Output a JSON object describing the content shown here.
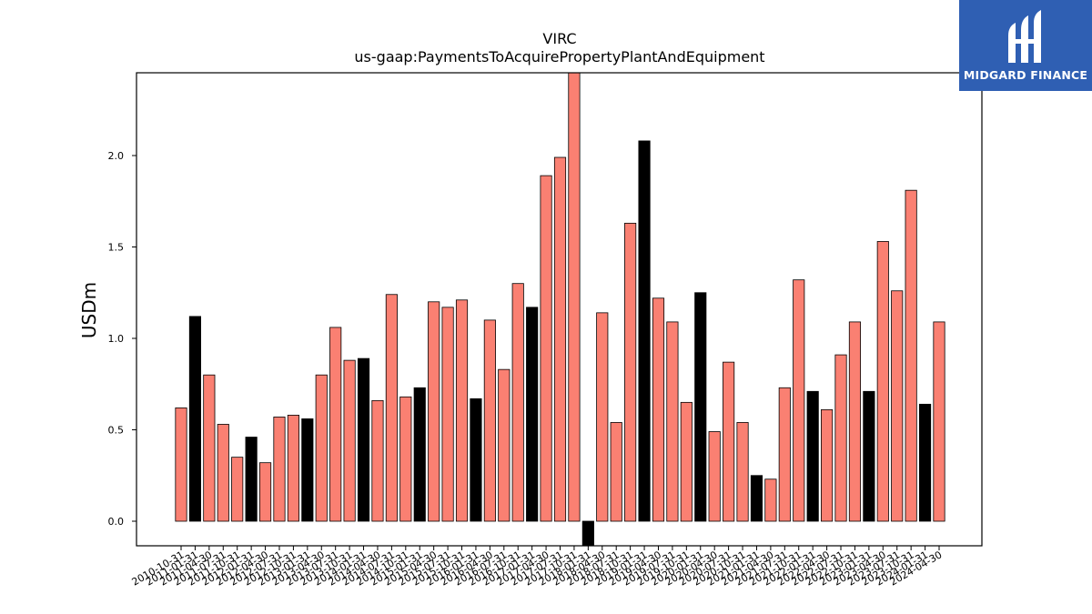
{
  "brand": {
    "name": "MIDGARD FINANCE",
    "logo_color": "#2f5fb3"
  },
  "chart_data": {
    "type": "bar",
    "title": "VIRC",
    "subtitle": "us-gaap:PaymentsToAcquirePropertyPlantAndEquipment",
    "xlabel": "",
    "ylabel": "USDm",
    "ylim": [
      -0.14,
      2.45
    ],
    "yticks": [
      0.0,
      0.5,
      1.0,
      1.5,
      2.0
    ],
    "ytick_labels": [
      "0.0",
      "0.5",
      "1.0",
      "1.5",
      "2.0"
    ],
    "grid": false,
    "colors": {
      "quarterly": "#fa8072",
      "annual": "#000000",
      "edge": "#000000"
    },
    "categories": [
      "2010-10-31",
      "2011-01-31",
      "2011-04-30",
      "2011-07-31",
      "2011-10-31",
      "2012-01-31",
      "2012-04-30",
      "2012-07-31",
      "2012-10-31",
      "2013-01-31",
      "2013-04-30",
      "2013-07-31",
      "2013-10-31",
      "2014-01-31",
      "2014-04-30",
      "2014-07-31",
      "2014-10-31",
      "2015-01-31",
      "2015-04-30",
      "2015-07-31",
      "2015-10-31",
      "2016-01-31",
      "2016-04-30",
      "2016-07-31",
      "2016-10-31",
      "2017-01-31",
      "2017-04-30",
      "2017-07-31",
      "2017-10-31",
      "2018-01-31",
      "2018-04-30",
      "2018-07-31",
      "2018-10-31",
      "2019-01-31",
      "2019-04-30",
      "2019-07-31",
      "2019-10-31",
      "2020-01-31",
      "2020-04-30",
      "2020-07-31",
      "2020-10-31",
      "2021-01-31",
      "2021-04-30",
      "2021-07-31",
      "2021-10-31",
      "2022-01-31",
      "2022-04-30",
      "2022-07-31",
      "2022-10-31",
      "2023-01-31",
      "2023-04-30",
      "2023-07-31",
      "2023-10-31",
      "2024-01-31",
      "2024-04-30"
    ],
    "values": [
      0.62,
      1.12,
      0.8,
      0.53,
      0.35,
      0.46,
      0.32,
      0.57,
      0.58,
      0.56,
      0.8,
      1.06,
      0.88,
      0.89,
      0.66,
      1.24,
      0.68,
      0.73,
      1.2,
      1.17,
      1.21,
      0.67,
      1.1,
      0.83,
      1.3,
      1.17,
      1.89,
      1.99,
      2.46,
      -0.14,
      1.14,
      0.54,
      1.63,
      2.08,
      1.22,
      1.09,
      0.65,
      1.25,
      0.49,
      0.87,
      0.54,
      0.25,
      0.23,
      0.73,
      1.32,
      0.71,
      0.61,
      0.91,
      1.09,
      0.71,
      1.53,
      1.26,
      1.81,
      0.64,
      1.09
    ],
    "annual": [
      false,
      true,
      false,
      false,
      false,
      true,
      false,
      false,
      false,
      true,
      false,
      false,
      false,
      true,
      false,
      false,
      false,
      true,
      false,
      false,
      false,
      true,
      false,
      false,
      false,
      true,
      false,
      false,
      false,
      true,
      false,
      false,
      false,
      true,
      false,
      false,
      false,
      true,
      false,
      false,
      false,
      true,
      false,
      false,
      false,
      true,
      false,
      false,
      false,
      true,
      false,
      false,
      false,
      true,
      false
    ]
  }
}
